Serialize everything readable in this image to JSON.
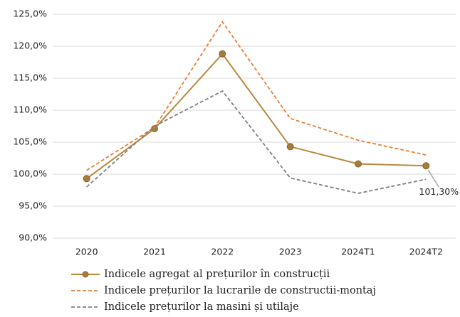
{
  "chart_data": {
    "type": "line",
    "categories": [
      "2020",
      "2021",
      "2022",
      "2023",
      "2024T1",
      "2024T2"
    ],
    "series": [
      {
        "name": "Indicele agregat al prețurilor în construcții",
        "color": "#b58a3d",
        "marker": true,
        "dash": false,
        "values": [
          99.3,
          107.1,
          118.8,
          104.3,
          101.6,
          101.3
        ],
        "value_labels": [
          null,
          null,
          null,
          null,
          null,
          "101,30%"
        ]
      },
      {
        "name": "Indicele prețurilor la lucrarile de constructii-montaj",
        "color": "#ed7d31",
        "marker": false,
        "dash": true,
        "values": [
          100.6,
          107.3,
          123.8,
          108.7,
          105.3,
          103.0
        ]
      },
      {
        "name": "Indicele prețurilor la masini și utilaje",
        "color": "#7f7f7f",
        "marker": false,
        "dash": true,
        "values": [
          98.0,
          107.5,
          113.0,
          99.4,
          97.0,
          99.2
        ]
      }
    ],
    "ylim": [
      90,
      125
    ],
    "yticks": [
      {
        "value": 90,
        "label": "90,0%"
      },
      {
        "value": 95,
        "label": "95,0%"
      },
      {
        "value": 100,
        "label": "100,0%"
      },
      {
        "value": 105,
        "label": "105,0%"
      },
      {
        "value": 110,
        "label": "110,0%"
      },
      {
        "value": 115,
        "label": "115,0%"
      },
      {
        "value": 120,
        "label": "120,0%"
      },
      {
        "value": 125,
        "label": "125,0%"
      }
    ],
    "grid": true,
    "legend": "bottom"
  }
}
